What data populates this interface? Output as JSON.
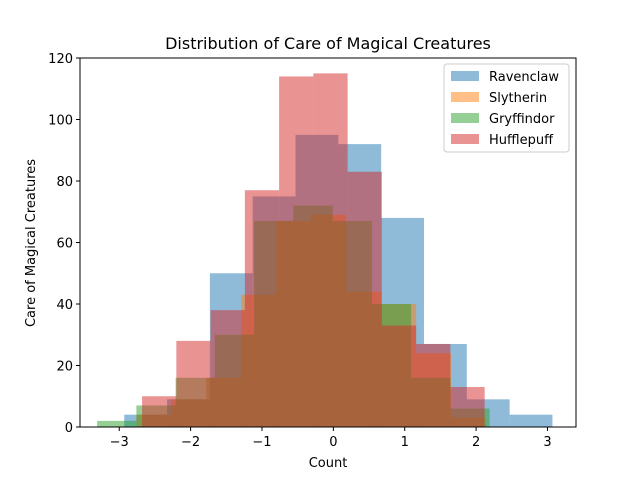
{
  "chart_data": {
    "type": "histogram",
    "title": "Distribution of Care of Magical Creatures",
    "xlabel": "Count",
    "ylabel": "Care of Magical Creatures",
    "xlim": [
      -3.55,
      3.4
    ],
    "ylim": [
      0,
      120
    ],
    "xticks": [
      -3,
      -2,
      -1,
      0,
      1,
      2,
      3
    ],
    "yticks": [
      0,
      20,
      40,
      60,
      80,
      100,
      120
    ],
    "grid": false,
    "legend_position": "top-right",
    "bar_alpha": 0.5,
    "series": [
      {
        "name": "Ravenclaw",
        "color": "#1f77b4",
        "edges": [
          -2.93,
          -2.33,
          -1.73,
          -1.13,
          -0.53,
          0.07,
          0.67,
          1.27,
          1.87,
          2.47,
          3.07
        ],
        "counts": [
          4,
          9,
          50,
          75,
          95,
          92,
          68,
          27,
          9,
          4
        ]
      },
      {
        "name": "Slytherin",
        "color": "#ff7f0e",
        "edges": [
          -2.76,
          -2.27,
          -1.78,
          -1.29,
          -0.8,
          -0.31,
          0.18,
          0.67,
          1.16,
          1.65,
          2.14
        ],
        "counts": [
          4,
          9,
          16,
          43,
          67,
          69,
          44,
          40,
          24,
          3
        ]
      },
      {
        "name": "Gryffindor",
        "color": "#2ca02c",
        "edges": [
          -3.31,
          -2.76,
          -2.21,
          -1.66,
          -1.11,
          -0.56,
          -0.01,
          0.54,
          1.09,
          1.64,
          2.19
        ],
        "counts": [
          2,
          7,
          16,
          30,
          67,
          72,
          67,
          40,
          16,
          6
        ]
      },
      {
        "name": "Hufflepuff",
        "color": "#d62728",
        "edges": [
          -2.68,
          -2.2,
          -1.72,
          -1.24,
          -0.76,
          -0.28,
          0.2,
          0.68,
          1.16,
          1.64,
          2.12
        ],
        "counts": [
          10,
          28,
          38,
          77,
          114,
          115,
          83,
          33,
          27,
          13
        ]
      }
    ]
  }
}
